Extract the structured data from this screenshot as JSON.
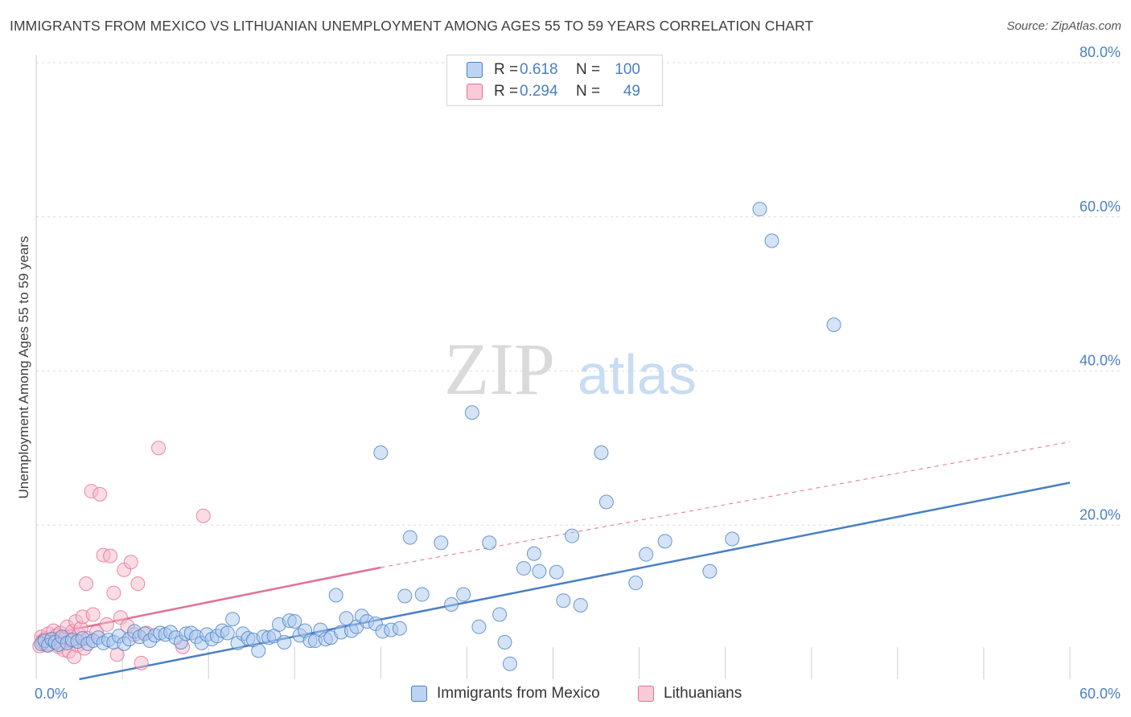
{
  "header": {
    "title": "IMMIGRANTS FROM MEXICO VS LITHUANIAN UNEMPLOYMENT AMONG AGES 55 TO 59 YEARS CORRELATION CHART",
    "source": "Source: ZipAtlas.com"
  },
  "watermark": {
    "zip": "ZIP",
    "atlas": "atlas"
  },
  "legend": {
    "rows": [
      {
        "r_label": "R =",
        "r_value": "0.618",
        "n_label": "N =",
        "n_value": "100"
      },
      {
        "r_label": "R =",
        "r_value": "0.294",
        "n_label": "N =",
        "n_value": "49"
      }
    ]
  },
  "chart_data": {
    "type": "scatter",
    "title": "IMMIGRANTS FROM MEXICO VS LITHUANIAN UNEMPLOYMENT AMONG AGES 55 TO 59 YEARS CORRELATION CHART",
    "xlabel": "",
    "ylabel": "Unemployment Among Ages 55 to 59 years",
    "xlim": [
      0,
      60
    ],
    "ylim": [
      0,
      80
    ],
    "x_tick_labels": [
      "0.0%",
      "60.0%"
    ],
    "y_ticks": [
      20,
      40,
      60,
      80
    ],
    "y_tick_labels": [
      "20.0%",
      "40.0%",
      "60.0%",
      "80.0%"
    ],
    "grid": true,
    "colors": {
      "mexico": "#4a7fc4",
      "mexico_fill": "#a9c7ee",
      "lithuanians": "#e36f96",
      "lithuanians_fill": "#f6b9cc",
      "tick_text": "#4a7fc4"
    },
    "series": [
      {
        "name": "Immigrants from Mexico",
        "color": "#4a7fc4",
        "points": [
          [
            0.3,
            4.6
          ],
          [
            0.5,
            5.0
          ],
          [
            0.7,
            4.4
          ],
          [
            0.9,
            5.2
          ],
          [
            1.1,
            4.8
          ],
          [
            1.3,
            4.5
          ],
          [
            1.5,
            5.5
          ],
          [
            1.8,
            4.7
          ],
          [
            2.1,
            5.1
          ],
          [
            2.4,
            4.9
          ],
          [
            2.7,
            5.3
          ],
          [
            3.0,
            4.6
          ],
          [
            3.3,
            5.0
          ],
          [
            3.6,
            5.4
          ],
          [
            3.9,
            4.7
          ],
          [
            4.2,
            5.1
          ],
          [
            4.5,
            4.8
          ],
          [
            4.8,
            5.6
          ],
          [
            5.1,
            4.6
          ],
          [
            5.4,
            5.2
          ],
          [
            5.7,
            6.2
          ],
          [
            6.0,
            5.5
          ],
          [
            6.3,
            5.9
          ],
          [
            6.6,
            5.0
          ],
          [
            6.9,
            5.7
          ],
          [
            7.2,
            6.0
          ],
          [
            7.5,
            5.8
          ],
          [
            7.8,
            6.1
          ],
          [
            8.1,
            5.4
          ],
          [
            8.4,
            4.8
          ],
          [
            8.7,
            5.9
          ],
          [
            9.0,
            6.0
          ],
          [
            9.3,
            5.5
          ],
          [
            9.6,
            4.7
          ],
          [
            9.9,
            5.8
          ],
          [
            10.2,
            5.2
          ],
          [
            10.5,
            5.6
          ],
          [
            10.8,
            6.3
          ],
          [
            11.1,
            6.0
          ],
          [
            11.4,
            7.8
          ],
          [
            11.7,
            4.7
          ],
          [
            12.0,
            5.9
          ],
          [
            12.3,
            5.3
          ],
          [
            12.6,
            5.1
          ],
          [
            12.9,
            3.7
          ],
          [
            13.2,
            5.5
          ],
          [
            13.5,
            5.4
          ],
          [
            13.8,
            5.6
          ],
          [
            14.1,
            7.1
          ],
          [
            14.4,
            4.8
          ],
          [
            14.7,
            7.6
          ],
          [
            15.0,
            7.5
          ],
          [
            15.3,
            5.7
          ],
          [
            15.6,
            6.3
          ],
          [
            15.9,
            5.0
          ],
          [
            16.2,
            5.0
          ],
          [
            16.5,
            6.4
          ],
          [
            16.8,
            5.2
          ],
          [
            17.1,
            5.4
          ],
          [
            17.4,
            10.9
          ],
          [
            17.7,
            6.1
          ],
          [
            18.0,
            7.9
          ],
          [
            18.3,
            6.3
          ],
          [
            18.6,
            6.8
          ],
          [
            18.9,
            8.2
          ],
          [
            19.2,
            7.5
          ],
          [
            19.7,
            7.2
          ],
          [
            20.1,
            6.2
          ],
          [
            20.6,
            6.4
          ],
          [
            21.1,
            6.6
          ],
          [
            21.4,
            10.8
          ],
          [
            21.7,
            18.4
          ],
          [
            22.4,
            11.0
          ],
          [
            23.5,
            17.7
          ],
          [
            24.1,
            9.7
          ],
          [
            24.8,
            11.0
          ],
          [
            25.3,
            34.6
          ],
          [
            25.7,
            6.8
          ],
          [
            26.3,
            17.7
          ],
          [
            26.9,
            8.4
          ],
          [
            27.2,
            4.8
          ],
          [
            27.5,
            2.0
          ],
          [
            28.3,
            14.4
          ],
          [
            28.9,
            16.3
          ],
          [
            29.2,
            14.0
          ],
          [
            30.2,
            13.9
          ],
          [
            30.6,
            10.2
          ],
          [
            31.1,
            18.6
          ],
          [
            31.6,
            9.6
          ],
          [
            32.8,
            29.4
          ],
          [
            33.1,
            23.0
          ],
          [
            34.8,
            12.5
          ],
          [
            35.4,
            16.2
          ],
          [
            36.5,
            17.9
          ],
          [
            39.1,
            14.0
          ],
          [
            40.4,
            18.2
          ],
          [
            46.3,
            46.0
          ],
          [
            20.0,
            29.4
          ],
          [
            42.0,
            61.0
          ],
          [
            42.7,
            56.9
          ]
        ]
      },
      {
        "name": "Lithuanians",
        "color": "#e36f96",
        "points": [
          [
            0.2,
            4.3
          ],
          [
            0.3,
            5.5
          ],
          [
            0.4,
            4.8
          ],
          [
            0.5,
            5.2
          ],
          [
            0.6,
            4.4
          ],
          [
            0.7,
            5.9
          ],
          [
            0.8,
            4.6
          ],
          [
            0.9,
            5.1
          ],
          [
            1.0,
            6.3
          ],
          [
            1.1,
            4.9
          ],
          [
            1.2,
            5.7
          ],
          [
            1.3,
            4.2
          ],
          [
            1.4,
            6.0
          ],
          [
            1.5,
            4.7
          ],
          [
            1.6,
            3.8
          ],
          [
            1.7,
            5.4
          ],
          [
            1.8,
            6.8
          ],
          [
            1.9,
            3.6
          ],
          [
            2.0,
            5.0
          ],
          [
            2.1,
            6.2
          ],
          [
            2.2,
            2.9
          ],
          [
            2.3,
            7.5
          ],
          [
            2.4,
            4.4
          ],
          [
            2.5,
            5.8
          ],
          [
            2.6,
            6.6
          ],
          [
            2.7,
            8.1
          ],
          [
            2.8,
            4.0
          ],
          [
            2.9,
            12.4
          ],
          [
            3.0,
            5.3
          ],
          [
            3.2,
            24.4
          ],
          [
            3.3,
            8.4
          ],
          [
            3.5,
            6.1
          ],
          [
            3.7,
            24.0
          ],
          [
            3.9,
            16.1
          ],
          [
            4.1,
            7.1
          ],
          [
            4.3,
            16.0
          ],
          [
            4.5,
            11.2
          ],
          [
            4.7,
            3.2
          ],
          [
            4.9,
            8.0
          ],
          [
            5.1,
            14.2
          ],
          [
            5.3,
            6.9
          ],
          [
            5.5,
            15.2
          ],
          [
            5.7,
            5.8
          ],
          [
            5.9,
            12.4
          ],
          [
            6.1,
            2.1
          ],
          [
            6.4,
            6.0
          ],
          [
            7.1,
            30.0
          ],
          [
            8.5,
            4.2
          ],
          [
            9.7,
            21.2
          ]
        ]
      }
    ],
    "trendlines": [
      {
        "series": "Immigrants from Mexico",
        "x": [
          2.5,
          60
        ],
        "y": [
          0.0,
          25.5
        ],
        "style": "solid"
      },
      {
        "series": "Lithuanians",
        "x": [
          0,
          20
        ],
        "y": [
          5.5,
          14.5
        ],
        "style": "solid"
      },
      {
        "series": "Lithuanians",
        "x": [
          20,
          60
        ],
        "y": [
          14.5,
          30.8
        ],
        "style": "dashed"
      }
    ]
  },
  "bottom_legend": {
    "items": [
      {
        "label": "Immigrants from Mexico"
      },
      {
        "label": "Lithuanians"
      }
    ]
  }
}
